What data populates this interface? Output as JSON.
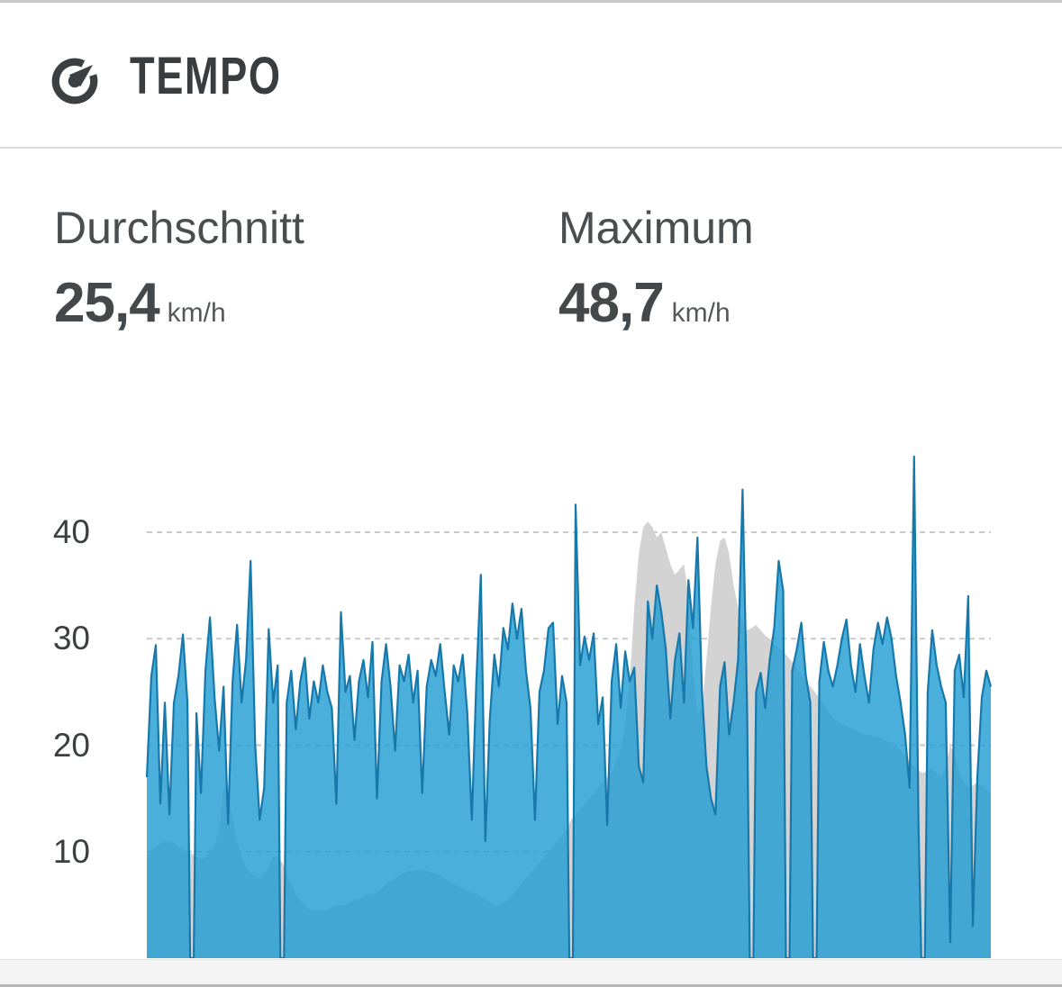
{
  "header": {
    "title": "TEMPO",
    "icon": "speedometer-icon"
  },
  "stats": {
    "average": {
      "label": "Durchschnitt",
      "value": "25,4",
      "unit": "km/h"
    },
    "maximum": {
      "label": "Maximum",
      "value": "48,7",
      "unit": "km/h"
    }
  },
  "colors": {
    "speed_fill": "rgba(34,157,210,0.82)",
    "speed_stroke": "#1778ab",
    "elevation_fill": "#d3d3d3",
    "grid": "#c9c9c9",
    "title_text": "#3a3d40",
    "axis_text": "#3c3f42"
  },
  "chart_data": {
    "type": "area",
    "title": "Tempo",
    "ylabel": "km/h",
    "y_ticks": [
      10,
      20,
      30,
      40
    ],
    "ylim": [
      0,
      49.4
    ],
    "grid": "horizontal dashed",
    "legend": "none",
    "x_note": "x-axis unlabeled (distance along ride), 188 uniform samples; value 0 = pause gap",
    "series": [
      {
        "name": "elevation-profile",
        "role": "background",
        "values": [
          9.5,
          10,
          10.5,
          10.8,
          11,
          11,
          10.8,
          10.5,
          10.2,
          10,
          9.8,
          9.5,
          9.3,
          9.5,
          10,
          10.5,
          12,
          16,
          15.5,
          13,
          11,
          9.5,
          8.5,
          8,
          7.5,
          7.5,
          8,
          8.5,
          9.5,
          9.5,
          9,
          8,
          7,
          6,
          5.5,
          5,
          4.5,
          4.5,
          4.5,
          4.5,
          4.5,
          4.8,
          5,
          5,
          5,
          5.2,
          5.5,
          5.5,
          5.8,
          6,
          6,
          6.2,
          6.5,
          7,
          7.2,
          7.5,
          7.8,
          8,
          8.2,
          8.2,
          8.3,
          8.3,
          8.2,
          8,
          8,
          7.8,
          7.5,
          7.2,
          7,
          6.8,
          6.5,
          6.3,
          6.2,
          6,
          5.8,
          5.5,
          5.2,
          5,
          5,
          5.2,
          5.5,
          6,
          6.5,
          7,
          7.5,
          8,
          8.5,
          9,
          9.5,
          10,
          10.5,
          11,
          11.5,
          12,
          13,
          13.5,
          14,
          14.5,
          15,
          15.5,
          16,
          16.5,
          17,
          17.5,
          18.5,
          19.5,
          22,
          26,
          33,
          38,
          40.5,
          41,
          40.5,
          39.5,
          40,
          38.5,
          37,
          36,
          36.5,
          37,
          34,
          27,
          23,
          23.5,
          28,
          33,
          37,
          39.2,
          39.5,
          38,
          35,
          33,
          31.5,
          30.8,
          31,
          31.3,
          30.8,
          30.3,
          30,
          29.5,
          29.2,
          28.8,
          28.3,
          27.8,
          27.2,
          26.6,
          26,
          25.5,
          25,
          24.4,
          23.8,
          23.2,
          22.6,
          22.2,
          22,
          21.8,
          21.6,
          21.4,
          21.2,
          21,
          21,
          20.8,
          20.8,
          20.6,
          20.4,
          20.2,
          20,
          19.5,
          19,
          18.5,
          18,
          17.6,
          17.4,
          17.6,
          17.8,
          17.4,
          17,
          18,
          20,
          19,
          17.5,
          16.5,
          16,
          16.2,
          16.5,
          16.2,
          15.8,
          15.5
        ]
      },
      {
        "name": "speed-kmh",
        "role": "foreground",
        "values": [
          17,
          26.5,
          29.4,
          14.5,
          24,
          13.5,
          24,
          26.5,
          30.4,
          24,
          0,
          23,
          15.5,
          27,
          32,
          24.5,
          19.5,
          25.5,
          12.6,
          26,
          31.3,
          24,
          28,
          37.3,
          20,
          13,
          16,
          30.9,
          24,
          27.5,
          0,
          24,
          27,
          21.5,
          26,
          28.2,
          22.5,
          26,
          24,
          27.5,
          25,
          23.5,
          14.5,
          32.5,
          25,
          26.5,
          20.5,
          26,
          28,
          24.5,
          29.7,
          15,
          26,
          29.5,
          25.5,
          19.5,
          27.5,
          26,
          28.5,
          24,
          27,
          15.5,
          25.5,
          28,
          26.5,
          29.5,
          25,
          21,
          27.5,
          26,
          28.5,
          23,
          13,
          26,
          36,
          11,
          22.5,
          28.5,
          25.5,
          31,
          29,
          33.3,
          30,
          32.8,
          27,
          23.5,
          13,
          25,
          27,
          31,
          31.5,
          22,
          26.5,
          24,
          0,
          42.6,
          27.5,
          30.2,
          28,
          30.5,
          22,
          24.5,
          12.5,
          26,
          29.5,
          23.5,
          28.8,
          26,
          27.3,
          18,
          16.5,
          33.5,
          30,
          35,
          32.5,
          29,
          22.5,
          28,
          30.5,
          24,
          35.5,
          31,
          39.5,
          25,
          18,
          15,
          13.5,
          25.5,
          27.8,
          21,
          24,
          28,
          44,
          23.5,
          0,
          25,
          26.8,
          23.5,
          28,
          31,
          37.3,
          34.5,
          0,
          27,
          29,
          31.5,
          26.5,
          24,
          0,
          26,
          29.7,
          27,
          25.5,
          27.5,
          30,
          31.8,
          27.5,
          25,
          29.5,
          26.5,
          24,
          29,
          31.5,
          29.5,
          32,
          30,
          26.5,
          24,
          21,
          16,
          47.1,
          12,
          0,
          25,
          30.8,
          27.5,
          25.5,
          24,
          1.5,
          27,
          28.5,
          24.5,
          34,
          3,
          17,
          24.5,
          27,
          25.5
        ]
      }
    ]
  }
}
